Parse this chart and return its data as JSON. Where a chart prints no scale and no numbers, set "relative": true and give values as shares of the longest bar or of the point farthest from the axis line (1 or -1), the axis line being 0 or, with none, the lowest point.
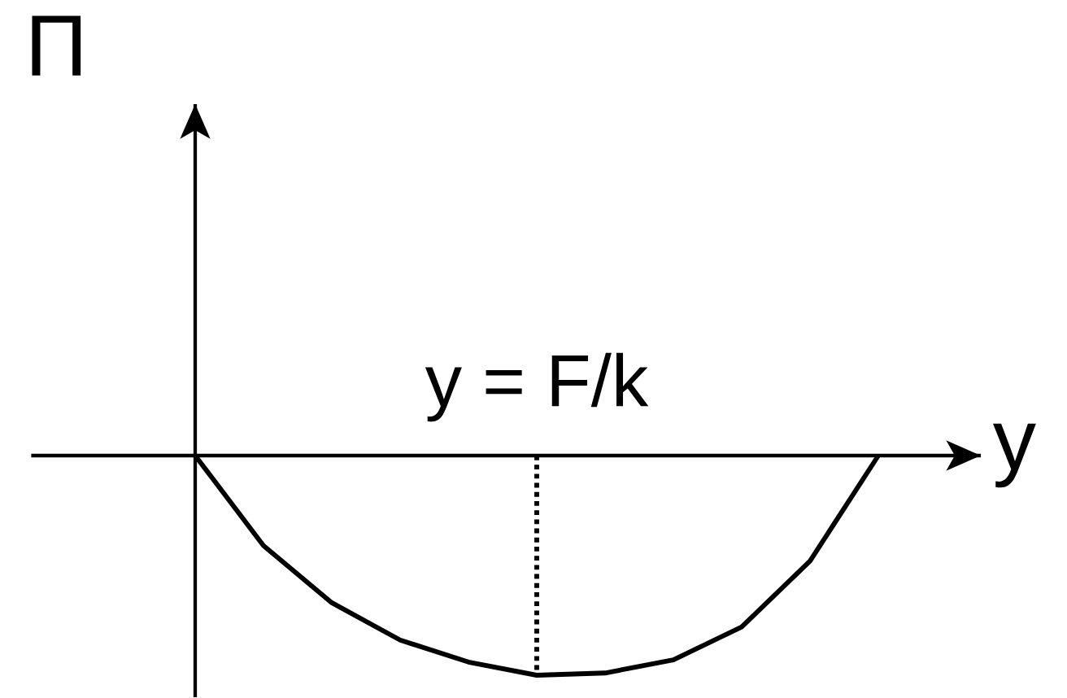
{
  "chart_data": {
    "type": "line",
    "relative": true,
    "xlabel": "y",
    "ylabel": "Π",
    "color": "#000000",
    "categories": [
      null,
      null,
      null,
      null,
      null,
      null,
      null,
      null,
      null,
      null,
      null
    ],
    "values": [
      0,
      -0.41,
      -0.67,
      -0.84,
      -0.94,
      -1,
      -0.99,
      -0.93,
      -0.78,
      -0.48,
      0
    ],
    "annotations": [
      "y = F/k"
    ]
  }
}
